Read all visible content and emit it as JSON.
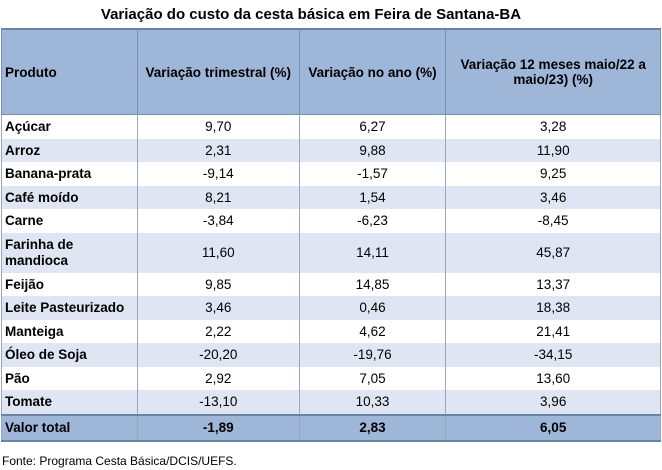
{
  "title": "Variação do custo da cesta básica em Feira de Santana-BA",
  "headers": [
    "Produto",
    "Variação trimestral (%)",
    "Variação no ano (%)",
    "Variação 12 meses maio/22 a maio/23) (%)"
  ],
  "rows": [
    [
      "Açúcar",
      "9,70",
      "6,27",
      "3,28"
    ],
    [
      "Arroz",
      "2,31",
      "9,88",
      "11,90"
    ],
    [
      "Banana-prata",
      "-9,14",
      "-1,57",
      "9,25"
    ],
    [
      "Café moído",
      "8,21",
      "1,54",
      "3,46"
    ],
    [
      "Carne",
      "-3,84",
      "-6,23",
      "-8,45"
    ],
    [
      "Farinha de mandioca",
      "11,60",
      "14,11",
      "45,87"
    ],
    [
      "Feijão",
      "9,85",
      "14,85",
      "13,37"
    ],
    [
      "Leite Pasteurizado",
      "3,46",
      "0,46",
      "18,38"
    ],
    [
      "Manteiga",
      "2,22",
      "4,62",
      "21,41"
    ],
    [
      "Óleo de Soja",
      "-20,20",
      "-19,76",
      "-34,15"
    ],
    [
      "Pão",
      "2,92",
      "7,05",
      "13,60"
    ],
    [
      "Tomate",
      "-13,10",
      "10,33",
      "3,96"
    ]
  ],
  "total": [
    "Valor total",
    "-1,89",
    "2,83",
    "6,05"
  ],
  "source": "Fonte: Programa Cesta Básica/DCIS/UEFS."
}
